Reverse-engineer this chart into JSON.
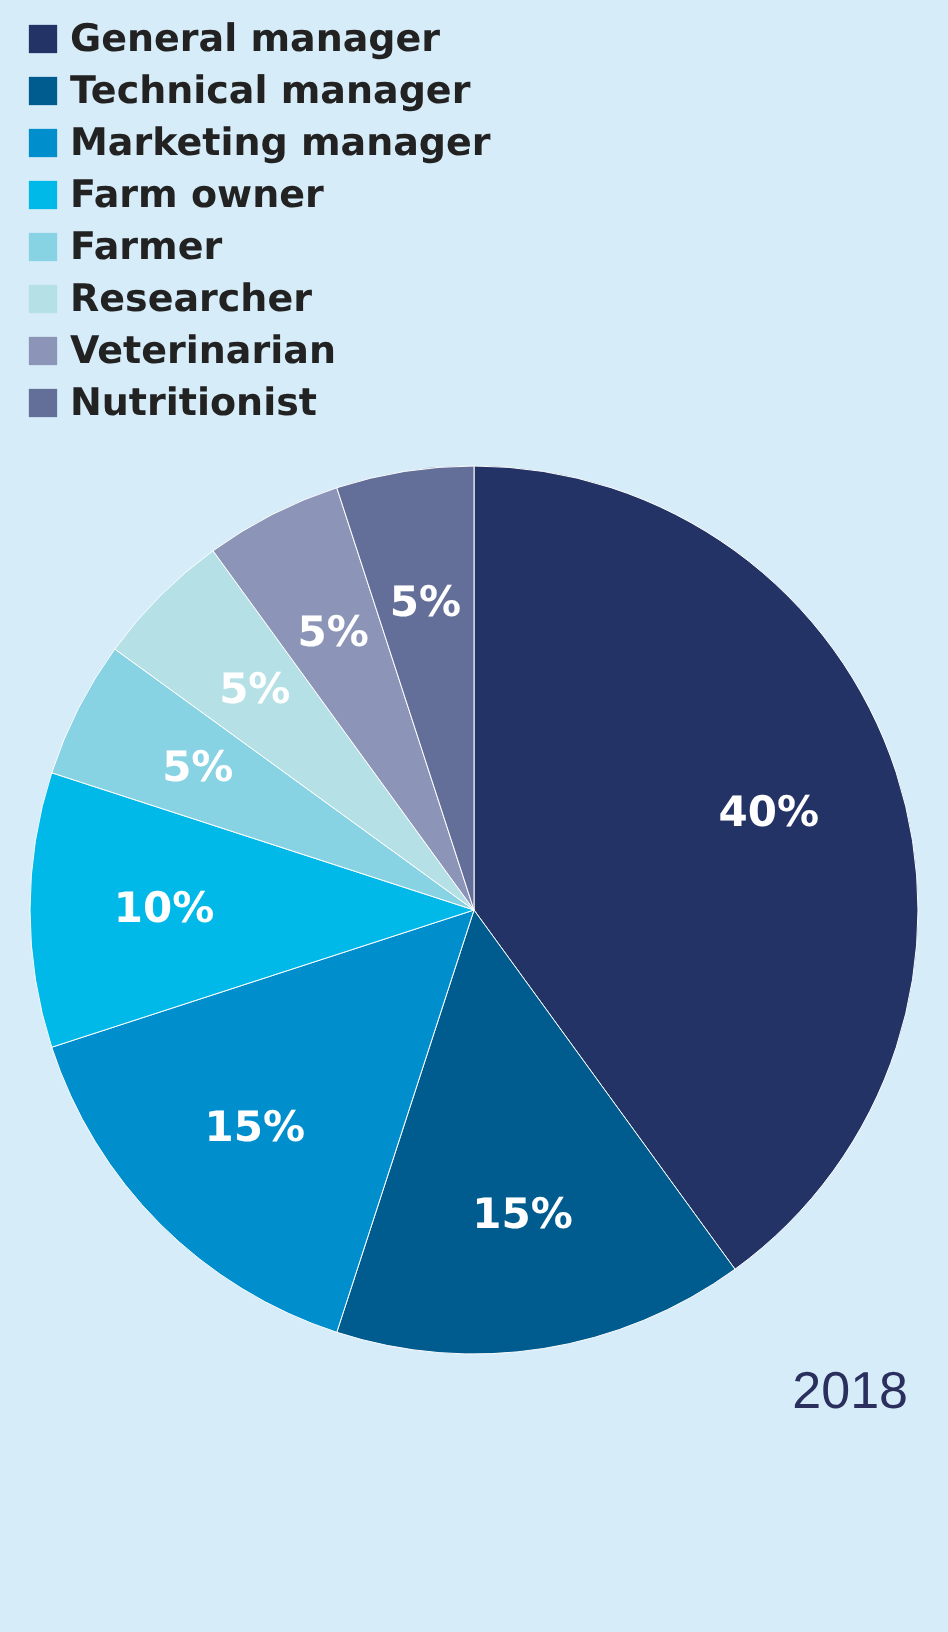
{
  "chart_data": {
    "type": "pie",
    "categories": [
      "General manager",
      "Technical manager",
      "Marketing manager",
      "Farm owner",
      "Farmer",
      "Researcher",
      "Veterinarian",
      "Nutritionist"
    ],
    "values": [
      40,
      15,
      15,
      10,
      5,
      5,
      5,
      5
    ],
    "colors": [
      "#243366",
      "#005b8f",
      "#008ecd",
      "#00b9e8",
      "#87d2e3",
      "#b4e0e6",
      "#8c95b8",
      "#646f99"
    ],
    "value_labels": [
      "40%",
      "15%",
      "15%",
      "10%",
      "5%",
      "5%",
      "5%",
      "5%"
    ],
    "legend": "top",
    "annotations": [
      "2018"
    ]
  }
}
